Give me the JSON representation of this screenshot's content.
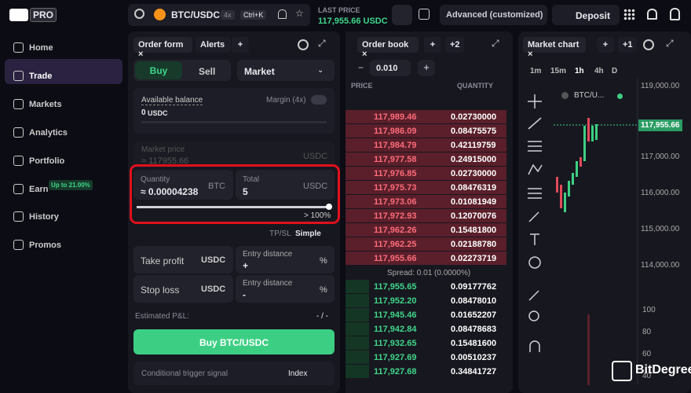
{
  "header": {
    "logo": "PRO",
    "pair": "BTC/USDC",
    "leverage": "4x",
    "shortcut": "Ctrl+K",
    "last_price_label": "LAST PRICE",
    "last_price": "117,955.66 USDC",
    "mode": "Advanced (customized)",
    "deposit": "Deposit"
  },
  "sidebar": {
    "items": [
      "Home",
      "Trade",
      "Markets",
      "Analytics",
      "Portfolio",
      "Earn",
      "History",
      "Promos"
    ],
    "earn_badge": "Up to 21.00%"
  },
  "order_form": {
    "tabs": [
      "Order form",
      "Alerts"
    ],
    "buy": "Buy",
    "sell": "Sell",
    "order_type": "Market",
    "available_balance": "Available balance",
    "balance": "0",
    "balance_unit": "USDC",
    "margin": "Margin (4x)",
    "market_price_label": "Market price",
    "market_price": "≈ 117955.66",
    "market_price_unit": "USDC",
    "quantity_label": "Quantity",
    "quantity": "≈ 0.00004238",
    "quantity_unit": "BTC",
    "total_label": "Total",
    "total": "5",
    "total_unit": "USDC",
    "slider_label": "> 100%",
    "tpsl": "TP/SL",
    "tpsl_mode": "Simple",
    "take_profit": "Take profit",
    "stop_loss": "Stop loss",
    "unit": "USDC",
    "entry_distance": "Entry distance",
    "plus": "+",
    "minus": "-",
    "percent": "%",
    "estimated": "Estimated P&L:",
    "estimated_value": "- / -",
    "submit": "Buy BTC/USDC",
    "conditional": "Conditional trigger signal",
    "index": "Index"
  },
  "order_book": {
    "tab": "Order book",
    "extra_tabs": "+2",
    "tick_size": "0.010",
    "columns": [
      "PRICE",
      "QUANTITY"
    ],
    "asks": [
      [
        "117,989.46",
        "0.02730000"
      ],
      [
        "117,986.09",
        "0.08475575"
      ],
      [
        "117,984.79",
        "0.42119759"
      ],
      [
        "117,977.58",
        "0.24915000"
      ],
      [
        "117,976.85",
        "0.02730000"
      ],
      [
        "117,975.73",
        "0.08476319"
      ],
      [
        "117,973.06",
        "0.01081949"
      ],
      [
        "117,972.93",
        "0.12070076"
      ],
      [
        "117,962.26",
        "0.15481800"
      ],
      [
        "117,962.25",
        "0.02188780"
      ],
      [
        "117,955.66",
        "0.02273719"
      ]
    ],
    "spread": "Spread: 0.01 (0.0000%)",
    "bids": [
      [
        "117,955.65",
        "0.09177762"
      ],
      [
        "117,952.20",
        "0.08478010"
      ],
      [
        "117,945.46",
        "0.01652207"
      ],
      [
        "117,942.84",
        "0.08478683"
      ],
      [
        "117,932.65",
        "0.15481600"
      ],
      [
        "117,927.69",
        "0.00510237"
      ],
      [
        "117,927.68",
        "0.34841727"
      ]
    ]
  },
  "market_chart": {
    "tab": "Market chart",
    "extra_tabs": "+1",
    "intervals": [
      "1m",
      "15m",
      "1h",
      "4h",
      "D"
    ],
    "symbol": "BTC/U...",
    "price_axis": [
      "119,000.00",
      "117,000.00",
      "116,000.00",
      "115,000.00",
      "114,000.00"
    ],
    "current_price": "117,955.66",
    "volume_axis": [
      "100",
      "80",
      "60",
      "40"
    ]
  },
  "watermark": "BitDegree"
}
